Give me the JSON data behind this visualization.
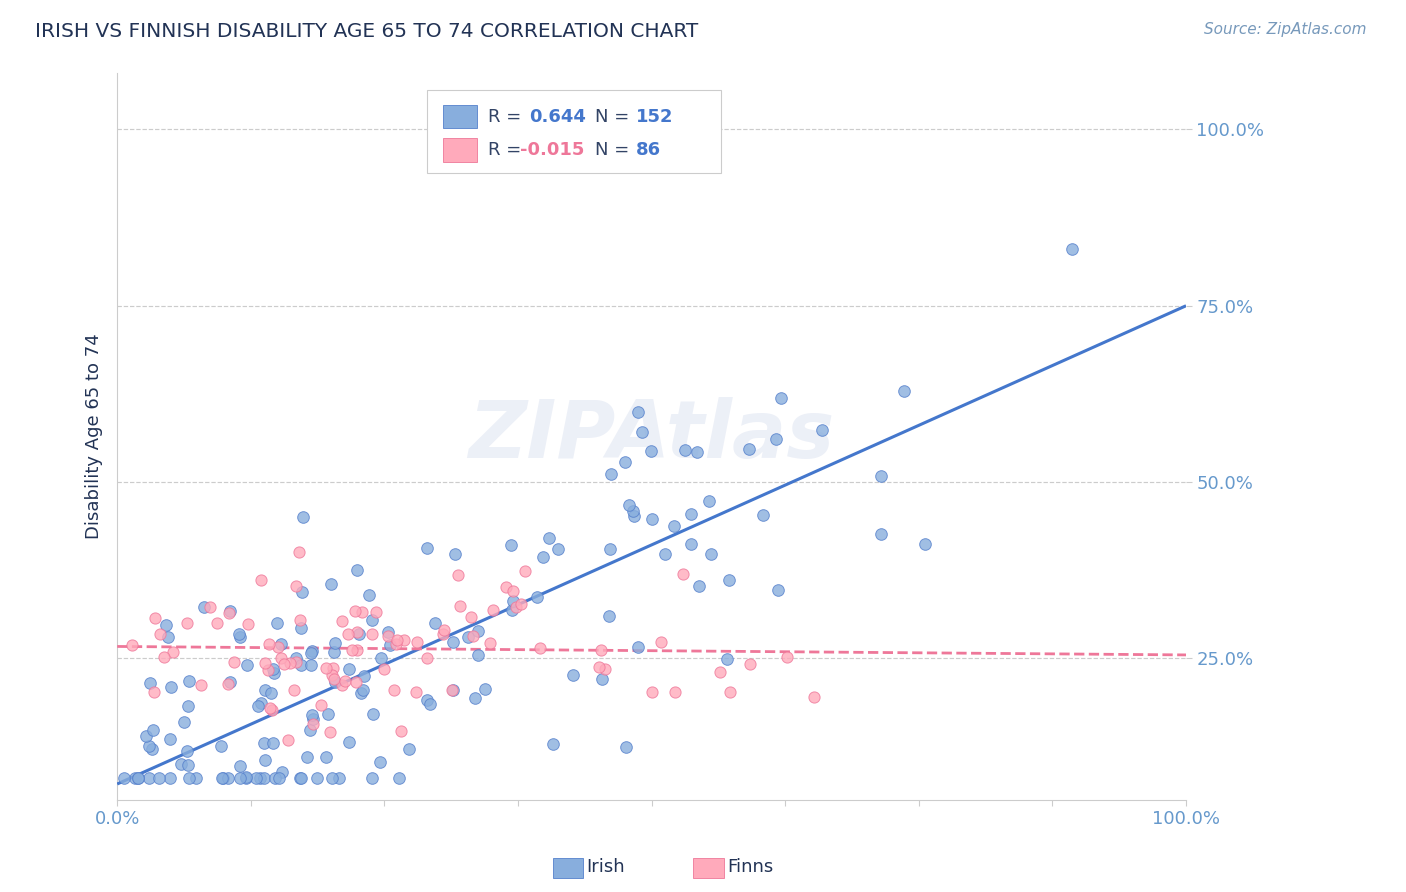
{
  "title": "IRISH VS FINNISH DISABILITY AGE 65 TO 74 CORRELATION CHART",
  "source": "Source: ZipAtlas.com",
  "ylabel": "Disability Age 65 to 74",
  "xlim": [
    0.0,
    1.0
  ],
  "ylim": [
    0.05,
    1.08
  ],
  "yticks": [
    0.25,
    0.5,
    0.75,
    1.0
  ],
  "ytick_labels": [
    "25.0%",
    "50.0%",
    "75.0%",
    "100.0%"
  ],
  "xticks": [
    0.0,
    0.125,
    0.25,
    0.375,
    0.5,
    0.625,
    0.75,
    0.875,
    1.0
  ],
  "xtick_labels": [
    "0.0%",
    "",
    "",
    "",
    "",
    "",
    "",
    "",
    "100.0%"
  ],
  "irish_R": 0.644,
  "irish_N": 152,
  "finn_R": -0.015,
  "finn_N": 86,
  "irish_color": "#88AEDD",
  "finn_color": "#FFAABB",
  "irish_edge_color": "#5580CC",
  "finn_edge_color": "#EE7799",
  "irish_line_color": "#4477CC",
  "finn_line_color": "#EE7799",
  "title_color": "#223355",
  "source_color": "#7799BB",
  "label_color": "#6699CC",
  "grid_color": "#CCCCCC",
  "watermark_color": "#AABBDD",
  "background_color": "#FFFFFF",
  "irish_intercept": 0.072,
  "irish_slope": 0.678,
  "finn_intercept": 0.267,
  "finn_slope": -0.012,
  "seed_irish": 12,
  "seed_finn": 77
}
